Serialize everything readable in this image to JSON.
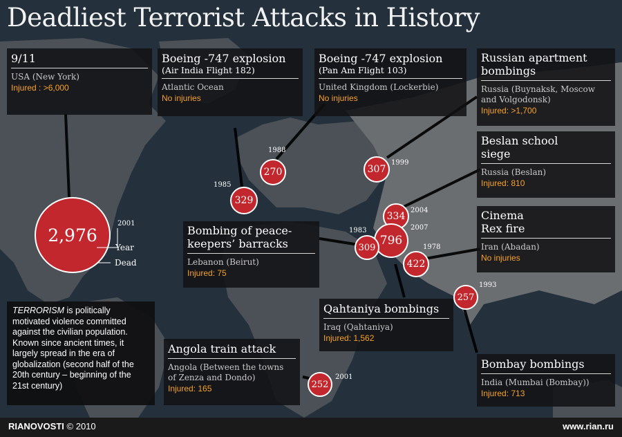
{
  "title": "Deadliest Terrorist Attacks in History",
  "attacks": [
    {
      "heading": "9/11",
      "subheading": "",
      "location": "USA (New York)",
      "injured": "Injured : >6,000",
      "dead": "2,976",
      "year": "2001"
    },
    {
      "heading": "Boeing -747 explosion",
      "subheading": "(Air India Flight 182)",
      "location": "Atlantic Ocean",
      "injured": "No injuries",
      "dead": "329",
      "year": "1985"
    },
    {
      "heading": "Boeing -747 explosion",
      "subheading": "(Pan Am Flight 103)",
      "location": "United Kingdom (Lockerbie)",
      "injured": "No injuries",
      "dead": "270",
      "year": "1988"
    },
    {
      "heading_lines": [
        "Russian apartment",
        "bombings"
      ],
      "location_lines": [
        "Russia (Buynaksk, Moscow",
        "and Volgodonsk)"
      ],
      "injured": "Injured: >1,700",
      "dead": "307",
      "year": "1999"
    },
    {
      "heading_lines": [
        "Beslan school",
        "siege"
      ],
      "location": "Russia (Beslan)",
      "injured": "Injured: 810",
      "dead": "334",
      "year": "2004"
    },
    {
      "heading_lines": [
        "Cinema",
        "Rex fire"
      ],
      "location": "Iran (Abadan)",
      "injured": "No injuries",
      "dead": "422",
      "year": "1978"
    },
    {
      "heading_lines": [
        "Bombing of peace-",
        "keepers’ barracks"
      ],
      "location": "Lebanon (Beirut)",
      "injured": "Injured:  75",
      "dead": "309",
      "year": "1983"
    },
    {
      "heading": "Qahtaniya bombings",
      "location": "Iraq (Qahtaniya)",
      "injured": "Injured: 1,562",
      "dead": "796",
      "year": "2007"
    },
    {
      "heading": "Angola train attack",
      "location_lines": [
        "Angola (Between the towns",
        "of Zenza and Dondo)"
      ],
      "injured": "Injured: 165",
      "dead": "252",
      "year": "2001"
    },
    {
      "heading": "Bombay bombings",
      "location": "India (Mumbai (Bombay))",
      "injured": "Injured: 713",
      "dead": "257",
      "year": "1993"
    }
  ],
  "legend": {
    "year_label": "Year",
    "dead_label": "Dead"
  },
  "definition": {
    "term": "TERRORISM",
    "text": " is politically motivated violence committed against the civilian population. Known since ancient times, it largely spread in the era of globalization (second half of the 20th century – beginning of the 21st century)"
  },
  "footer": {
    "brand": "RIANOVOSTI",
    "copyright": " © 2010",
    "url": "www.rian.ru"
  },
  "colors": {
    "marker": "#c1272d",
    "injured_text": "#f7a227",
    "ocean": "#24313c",
    "land": "#6b6e71"
  }
}
